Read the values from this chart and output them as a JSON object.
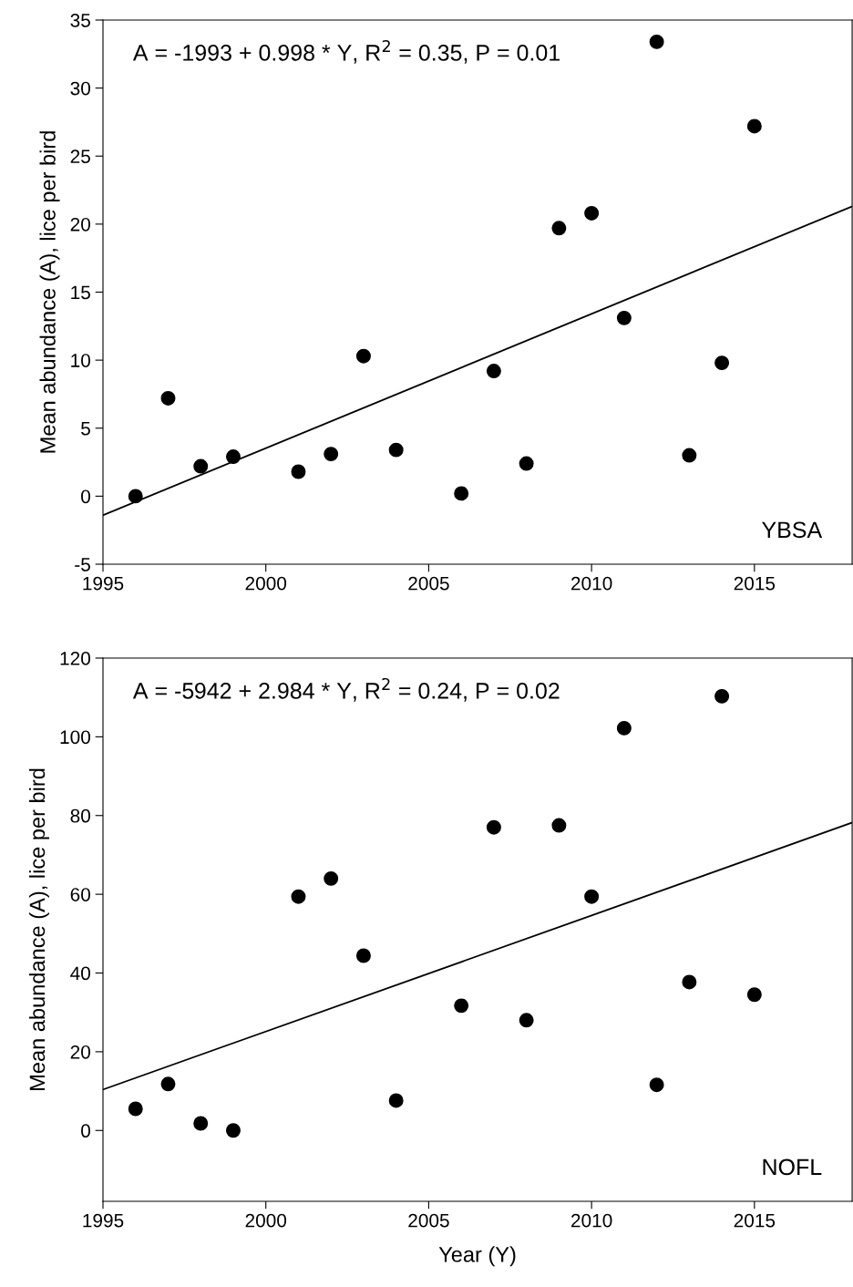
{
  "chart_data": [
    {
      "type": "scatter",
      "ylabel": "Mean abundance (A), lice per bird",
      "xlim": [
        1995,
        2018
      ],
      "xticks": [
        1995,
        2000,
        2005,
        2010,
        2015
      ],
      "ylim": [
        -5,
        35
      ],
      "yticks": [
        -5,
        0,
        5,
        10,
        15,
        20,
        25,
        30,
        35
      ],
      "grid": false,
      "annotations": [
        "A = -1993 + 0.998 * Y, R$^{2}$ = 0.35, P = 0.01",
        "YBSA"
      ],
      "series": [
        {
          "marker": "circle",
          "color": "#000000",
          "x": [
            1996,
            1997,
            1998,
            1999,
            2001,
            2002,
            2003,
            2004,
            2006,
            2007,
            2008,
            2009,
            2010,
            2011,
            2012,
            2013,
            2014,
            2015
          ],
          "values": [
            0,
            7.2,
            2.2,
            2.9,
            1.8,
            3.1,
            10.3,
            3.4,
            0.2,
            9.2,
            2.4,
            19.7,
            20.8,
            13.1,
            33.4,
            3.0,
            9.8,
            27.2
          ]
        },
        {
          "type": "line",
          "color": "#000000",
          "x": [
            1995,
            2018
          ],
          "values": [
            -1.4,
            21.3
          ]
        }
      ]
    },
    {
      "type": "scatter",
      "xlabel": "Year (Y)",
      "ylabel": "Mean abundance (A), lice per bird",
      "xlim": [
        1995,
        2018
      ],
      "xticks": [
        1995,
        2000,
        2005,
        2010,
        2015
      ],
      "ylim": [
        -18,
        120
      ],
      "yticks": [
        0,
        20,
        40,
        60,
        80,
        100,
        120
      ],
      "grid": false,
      "annotations": [
        "A = -5942 + 2.984 * Y, R$^{2}$ = 0.24, P = 0.02",
        "NOFL"
      ],
      "series": [
        {
          "marker": "circle",
          "color": "#000000",
          "x": [
            1996,
            1997,
            1998,
            1999,
            2001,
            2002,
            2003,
            2004,
            2006,
            2007,
            2008,
            2009,
            2010,
            2011,
            2012,
            2013,
            2014,
            2015
          ],
          "values": [
            5.5,
            11.8,
            1.8,
            0,
            59.4,
            64.0,
            44.4,
            7.6,
            31.7,
            77.0,
            28.0,
            77.5,
            59.4,
            102.2,
            11.6,
            37.7,
            110.3,
            34.5
          ]
        },
        {
          "type": "line",
          "color": "#000000",
          "x": [
            1995,
            2018
          ],
          "values": [
            10.4,
            78.2
          ]
        }
      ]
    }
  ]
}
